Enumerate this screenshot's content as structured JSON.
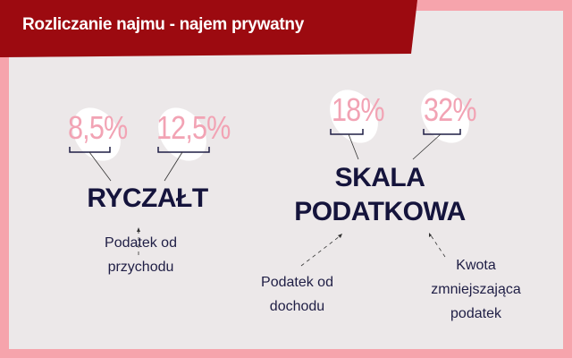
{
  "header": {
    "title": "Rozliczanie najmu - najem prywatny"
  },
  "colors": {
    "banner": "#9c0a10",
    "border": "#f6a4ac",
    "panel": "#ece8e9",
    "percent": "#f2a3b4",
    "text": "#15143c"
  },
  "ryczalt": {
    "title": "RYCZAŁT",
    "rates": [
      "8,5%",
      "12,5%"
    ],
    "note_line1": "Podatek od",
    "note_line2": "przychodu"
  },
  "skala": {
    "title_line1": "SKALA",
    "title_line2": "PODATKOWA",
    "rates": [
      "18%",
      "32%"
    ],
    "note_left_line1": "Podatek od",
    "note_left_line2": "dochodu",
    "note_right_line1": "Kwota",
    "note_right_line2": "zmniejszająca",
    "note_right_line3": "podatek"
  }
}
